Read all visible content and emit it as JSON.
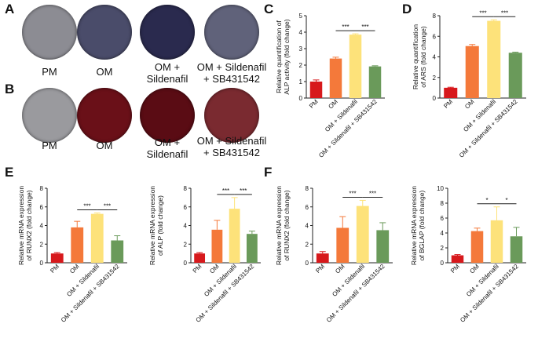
{
  "panels": {
    "A": {
      "letter": "A",
      "wells": [
        {
          "label": "PM",
          "label_line2": "",
          "color": "#8c8c93"
        },
        {
          "label": "OM",
          "label_line2": "",
          "color": "#4a4c6a"
        },
        {
          "label": "OM +",
          "label_line2": "Sildenafil",
          "color": "#2a2a4e"
        },
        {
          "label": "OM + Sildenafil",
          "label_line2": "+ SB431542",
          "color": "#60627a"
        }
      ]
    },
    "B": {
      "letter": "B",
      "wells": [
        {
          "label": "PM",
          "label_line2": "",
          "color": "#9a9a9e"
        },
        {
          "label": "OM",
          "label_line2": "",
          "color": "#6a1018"
        },
        {
          "label": "OM +",
          "label_line2": "Sildenafil",
          "color": "#5a0c14"
        },
        {
          "label": "OM + Sildenafil",
          "label_line2": "+ SB431542",
          "color": "#7a2a30"
        }
      ]
    },
    "C": {
      "letter": "C"
    },
    "D": {
      "letter": "D"
    },
    "E": {
      "letter": "E"
    },
    "F": {
      "letter": "F"
    }
  },
  "colors": {
    "pm": "#d7191c",
    "om": "#f4793a",
    "om_sild": "#fde27a",
    "om_sild_sb": "#6a9a5a"
  },
  "chart_data": [
    {
      "id": "C",
      "type": "bar",
      "categories": [
        "PM",
        "OM",
        "OM + Sildenafil",
        "OM + Sildenafil + SB431542"
      ],
      "values": [
        1.0,
        2.4,
        3.85,
        1.92
      ],
      "errors": [
        0.1,
        0.08,
        0.05,
        0.04
      ],
      "ylabel_line1": "Relative quantification of",
      "ylabel_line2": "ALP activity (fold change)",
      "ylim": [
        0,
        5
      ],
      "yticks": [
        "0",
        "1",
        "2",
        "3",
        "4",
        "5"
      ],
      "significance": [
        {
          "from": 1,
          "to": 2,
          "label": "***"
        },
        {
          "from": 2,
          "to": 3,
          "label": "***"
        }
      ]
    },
    {
      "id": "D",
      "type": "bar",
      "categories": [
        "PM",
        "OM",
        "OM + Sildenafil",
        "OM + Sildenafil + SB431542"
      ],
      "values": [
        1.0,
        5.05,
        7.5,
        4.4
      ],
      "errors": [
        0.05,
        0.15,
        0.1,
        0.06
      ],
      "ylabel_line1": "Relative quantification",
      "ylabel_line2": "of ARS (fold change)",
      "ylim": [
        0,
        8
      ],
      "yticks": [
        "0",
        "2",
        "4",
        "6",
        "8"
      ],
      "significance": [
        {
          "from": 1,
          "to": 2,
          "label": "***"
        },
        {
          "from": 2,
          "to": 3,
          "label": "***"
        }
      ]
    },
    {
      "id": "E1",
      "type": "bar",
      "categories": [
        "PM",
        "OM",
        "OM + Sildenafil",
        "OM + Sildenafil + SB431542"
      ],
      "values": [
        1.0,
        3.8,
        5.25,
        2.4
      ],
      "errors": [
        0.1,
        0.65,
        0.1,
        0.5
      ],
      "ylabel_line1": "Relative mRNA expression",
      "ylabel_line2": "of RUNX2 (fold change)",
      "ylim": [
        0,
        8
      ],
      "yticks": [
        "0",
        "2",
        "4",
        "6",
        "8"
      ],
      "significance": [
        {
          "from": 1,
          "to": 2,
          "label": "***"
        },
        {
          "from": 2,
          "to": 3,
          "label": "***"
        }
      ]
    },
    {
      "id": "E2",
      "type": "bar",
      "categories": [
        "PM",
        "OM",
        "OM + Sildenafil",
        "OM + Sildenafil + SB431542"
      ],
      "values": [
        1.0,
        3.55,
        5.8,
        3.1
      ],
      "errors": [
        0.1,
        1.0,
        1.2,
        0.3
      ],
      "ylabel_line1": "Relative mRNA expression",
      "ylabel_line2": "of ALP (fold change)",
      "ylim": [
        0,
        8
      ],
      "yticks": [
        "0",
        "2",
        "4",
        "6",
        "8"
      ],
      "significance": [
        {
          "from": 1,
          "to": 2,
          "label": "***"
        },
        {
          "from": 2,
          "to": 3,
          "label": "***"
        }
      ]
    },
    {
      "id": "F1",
      "type": "bar",
      "categories": [
        "PM",
        "OM",
        "OM + Sildenafil",
        "OM + Sildenafil + SB431542"
      ],
      "values": [
        1.0,
        3.75,
        6.1,
        3.5
      ],
      "errors": [
        0.2,
        1.2,
        0.6,
        0.8
      ],
      "ylabel_line1": "Relative mRNA expression",
      "ylabel_line2": "of RUNX2 (fold change)",
      "ylim": [
        0,
        8
      ],
      "yticks": [
        "0",
        "2",
        "4",
        "6",
        "8"
      ],
      "significance": [
        {
          "from": 1,
          "to": 2,
          "label": "***"
        },
        {
          "from": 2,
          "to": 3,
          "label": "***"
        }
      ]
    },
    {
      "id": "F2",
      "type": "bar",
      "categories": [
        "PM",
        "OM",
        "OM + Sildenafil",
        "OM + Sildenafil + SB431542"
      ],
      "values": [
        1.0,
        4.25,
        5.7,
        3.55
      ],
      "errors": [
        0.1,
        0.4,
        1.8,
        1.2
      ],
      "ylabel_line1": "Relative mRNA expression",
      "ylabel_line2": "of BGLAP (fold change)",
      "ylim": [
        0,
        10
      ],
      "yticks": [
        "0",
        "2",
        "4",
        "6",
        "8",
        "10"
      ],
      "significance": [
        {
          "from": 1,
          "to": 2,
          "label": "*"
        },
        {
          "from": 2,
          "to": 3,
          "label": "*"
        }
      ]
    }
  ]
}
